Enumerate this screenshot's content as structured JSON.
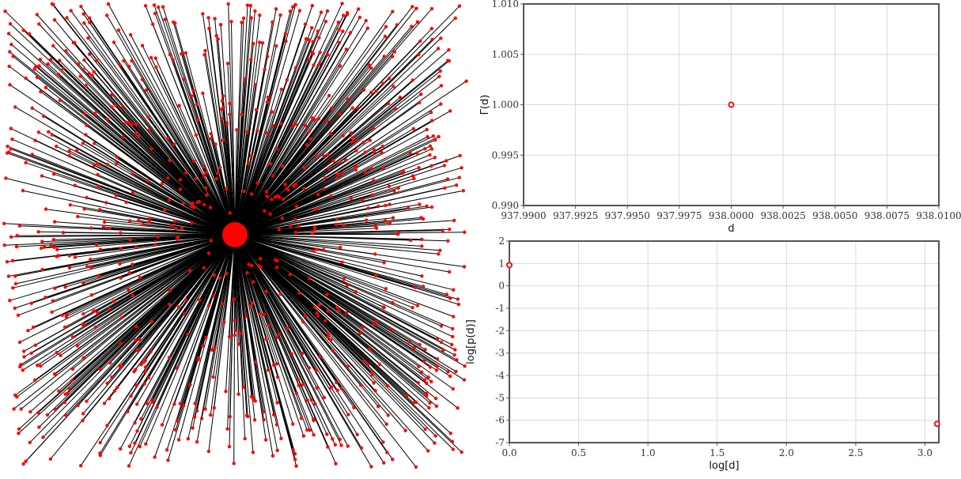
{
  "chart_data": [
    {
      "type": "network",
      "description_note": "",
      "hub": {
        "color": "#ff0000"
      },
      "leaf_count": 938,
      "edge_color": "#000000",
      "node_color": "#ff0000"
    },
    {
      "type": "scatter",
      "xlabel": "d",
      "ylabel": "Γ(d)",
      "xlim": [
        937.99,
        938.01
      ],
      "ylim": [
        0.99,
        1.01
      ],
      "xticks": [
        "937.9900",
        "937.9925",
        "937.9950",
        "937.9975",
        "938.0000",
        "938.0025",
        "938.0050",
        "938.0075",
        "938.0100"
      ],
      "yticks": [
        "0.990",
        "0.995",
        "1.000",
        "1.005",
        "1.010"
      ],
      "points": [
        {
          "x": 938.0,
          "y": 1.0
        }
      ],
      "marker_color": "#e8121b",
      "grid": true
    },
    {
      "type": "scatter",
      "xlabel": "log[d]",
      "ylabel": "log[p(d)]",
      "xlim": [
        0,
        3.1
      ],
      "ylim": [
        -7,
        2
      ],
      "xticks": [
        "0.0",
        "0.5",
        "1.0",
        "1.5",
        "2.0",
        "2.5",
        "3.0"
      ],
      "yticks": [
        "-7",
        "-6",
        "-5",
        "-4",
        "-3",
        "-2",
        "-1",
        "0",
        "1",
        "2"
      ],
      "points": [
        {
          "x": 0.0,
          "y": 0.93
        },
        {
          "x": 3.087,
          "y": -6.16
        }
      ],
      "marker_color": "#e8121b",
      "grid": true
    }
  ]
}
